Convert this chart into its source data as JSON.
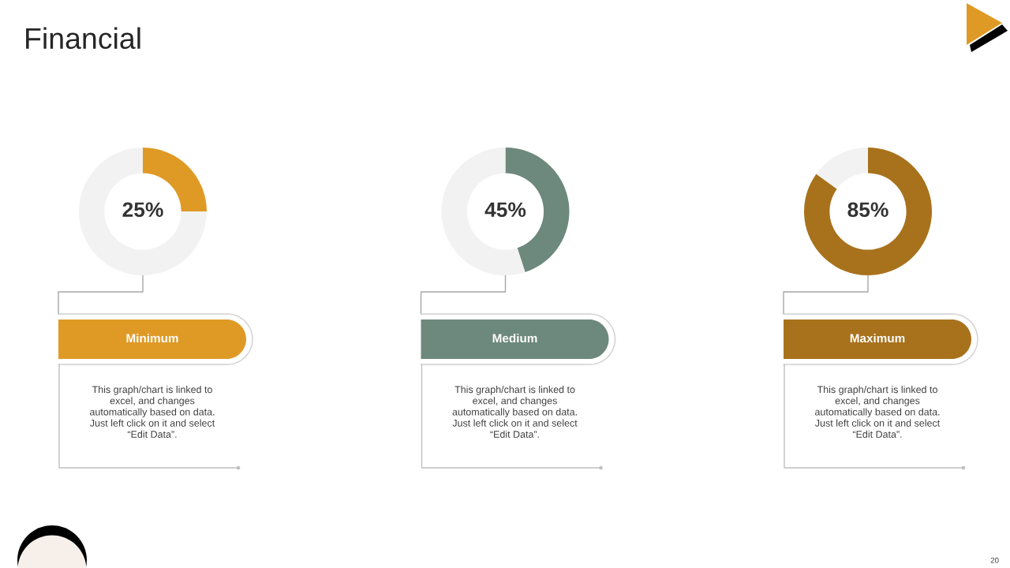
{
  "chart_data": [
    {
      "type": "other",
      "title": "Financial",
      "annotations": [
        "20"
      ]
    },
    {
      "type": "donut",
      "title": "Minimum",
      "categories": [
        null,
        null
      ],
      "values": [
        25,
        75
      ],
      "colors": [
        "#df9a26",
        "#f2f2f2"
      ],
      "value_labels": [
        "25%",
        null
      ],
      "annotations": [
        "This graph/chart is linked to\nexcel, and changes\nautomatically based on data.\nJust left click on it and select\n“Edit Data”."
      ]
    },
    {
      "type": "donut",
      "title": "Medium",
      "categories": [
        null,
        null
      ],
      "values": [
        45,
        55
      ],
      "colors": [
        "#6d887c",
        "#f2f2f2"
      ],
      "value_labels": [
        "45%",
        null
      ],
      "annotations": [
        "This graph/chart is linked to\nexcel, and changes\nautomatically based on data.\nJust left click on it and select\n“Edit Data”."
      ]
    },
    {
      "type": "donut",
      "title": "Maximum",
      "categories": [
        null,
        null
      ],
      "values": [
        85,
        15
      ],
      "colors": [
        "#a8721c",
        "#f2f2f2"
      ],
      "value_labels": [
        "85%",
        null
      ],
      "annotations": [
        "This graph/chart is linked to\nexcel, and changes\nautomatically based on data.\nJust left click on it and select\n“Edit Data”."
      ]
    }
  ]
}
